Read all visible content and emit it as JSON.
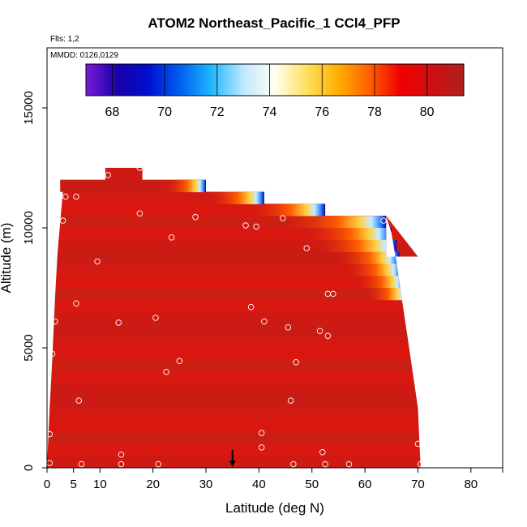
{
  "chart_data": {
    "type": "heatmap",
    "title": "ATOM2 Northeast_Pacific_1 CCl4_PFP",
    "flights_note": "Flts: 1,2",
    "dates_note": "MMDD: 0126,0129",
    "xlabel": "Latitude (deg N)",
    "ylabel": "Altitude (m)",
    "xlim": [
      0,
      86
    ],
    "ylim": [
      0,
      17500
    ],
    "x_ticks": [
      0,
      5,
      10,
      20,
      30,
      40,
      50,
      60,
      70,
      80
    ],
    "y_ticks": [
      0,
      5000,
      10000,
      15000
    ],
    "colorbar": {
      "range": [
        67,
        81.4
      ],
      "ticks": [
        68,
        70,
        72,
        74,
        76,
        78,
        80
      ],
      "colors": [
        "#7a1bd8",
        "#1a00a8",
        "#0010d0",
        "#0060f0",
        "#20b8ff",
        "#bfe8ff",
        "#fffff0",
        "#ffe060",
        "#ffb000",
        "#ff6000",
        "#f00000",
        "#d01010",
        "#b02020"
      ]
    },
    "field": {
      "background_value": 80.4,
      "top_profile": [
        [
          1,
          11500
        ],
        [
          2.5,
          11500
        ],
        [
          2.5,
          12000
        ],
        [
          11,
          12000
        ],
        [
          11,
          12500
        ],
        [
          18,
          12500
        ],
        [
          18,
          12000
        ],
        [
          30,
          12000
        ],
        [
          30,
          11500
        ],
        [
          41,
          11500
        ],
        [
          41,
          11000
        ],
        [
          52.5,
          11000
        ],
        [
          52.5,
          10500
        ],
        [
          64,
          10500
        ],
        [
          64,
          8800
        ],
        [
          70,
          8800
        ]
      ],
      "right_edge": [
        [
          64,
          10500
        ],
        [
          65,
          9800
        ],
        [
          66,
          8500
        ],
        [
          67,
          7000
        ],
        [
          68,
          5500
        ],
        [
          69,
          4000
        ],
        [
          70,
          2500
        ],
        [
          70.5,
          0
        ]
      ],
      "left_edge": [
        [
          3,
          11500
        ],
        [
          2,
          9000
        ],
        [
          1.5,
          7000
        ],
        [
          1,
          4500
        ],
        [
          0.5,
          2500
        ],
        [
          0,
          0
        ]
      ]
    },
    "samples": [
      {
        "lat": 11.5,
        "alt": 12200
      },
      {
        "lat": 17.5,
        "alt": 12500
      },
      {
        "lat": 3.5,
        "alt": 11300
      },
      {
        "lat": 5.5,
        "alt": 11300
      },
      {
        "lat": 3,
        "alt": 10300
      },
      {
        "lat": 17.5,
        "alt": 10600
      },
      {
        "lat": 28,
        "alt": 10450
      },
      {
        "lat": 37.5,
        "alt": 10100
      },
      {
        "lat": 39.5,
        "alt": 10050
      },
      {
        "lat": 44.5,
        "alt": 10400
      },
      {
        "lat": 63.5,
        "alt": 10300
      },
      {
        "lat": 23.5,
        "alt": 9600
      },
      {
        "lat": 49,
        "alt": 9150
      },
      {
        "lat": 9.5,
        "alt": 8600
      },
      {
        "lat": 5.5,
        "alt": 6850
      },
      {
        "lat": 53,
        "alt": 7250
      },
      {
        "lat": 54,
        "alt": 7250
      },
      {
        "lat": 38.5,
        "alt": 6700
      },
      {
        "lat": 1.5,
        "alt": 6100
      },
      {
        "lat": 20.5,
        "alt": 6250
      },
      {
        "lat": 13.5,
        "alt": 6050
      },
      {
        "lat": 41,
        "alt": 6100
      },
      {
        "lat": 45.5,
        "alt": 5850
      },
      {
        "lat": 51.5,
        "alt": 5700
      },
      {
        "lat": 53,
        "alt": 5500
      },
      {
        "lat": 69,
        "alt": 5150
      },
      {
        "lat": 1,
        "alt": 4750
      },
      {
        "lat": 25,
        "alt": 4450
      },
      {
        "lat": 47,
        "alt": 4400
      },
      {
        "lat": 22.5,
        "alt": 4000
      },
      {
        "lat": 6,
        "alt": 2800
      },
      {
        "lat": 46,
        "alt": 2800
      },
      {
        "lat": 0.5,
        "alt": 1400
      },
      {
        "lat": 40.5,
        "alt": 1450
      },
      {
        "lat": 40.5,
        "alt": 850
      },
      {
        "lat": 70,
        "alt": 1000
      },
      {
        "lat": 14,
        "alt": 550
      },
      {
        "lat": 52,
        "alt": 650
      },
      {
        "lat": 0.5,
        "alt": 200
      },
      {
        "lat": 6.5,
        "alt": 150
      },
      {
        "lat": 14,
        "alt": 150
      },
      {
        "lat": 21,
        "alt": 150
      },
      {
        "lat": 46.5,
        "alt": 150
      },
      {
        "lat": 52.5,
        "alt": 150
      },
      {
        "lat": 57,
        "alt": 150
      },
      {
        "lat": 70.5,
        "alt": 150
      }
    ],
    "arrow_lat": 35
  }
}
